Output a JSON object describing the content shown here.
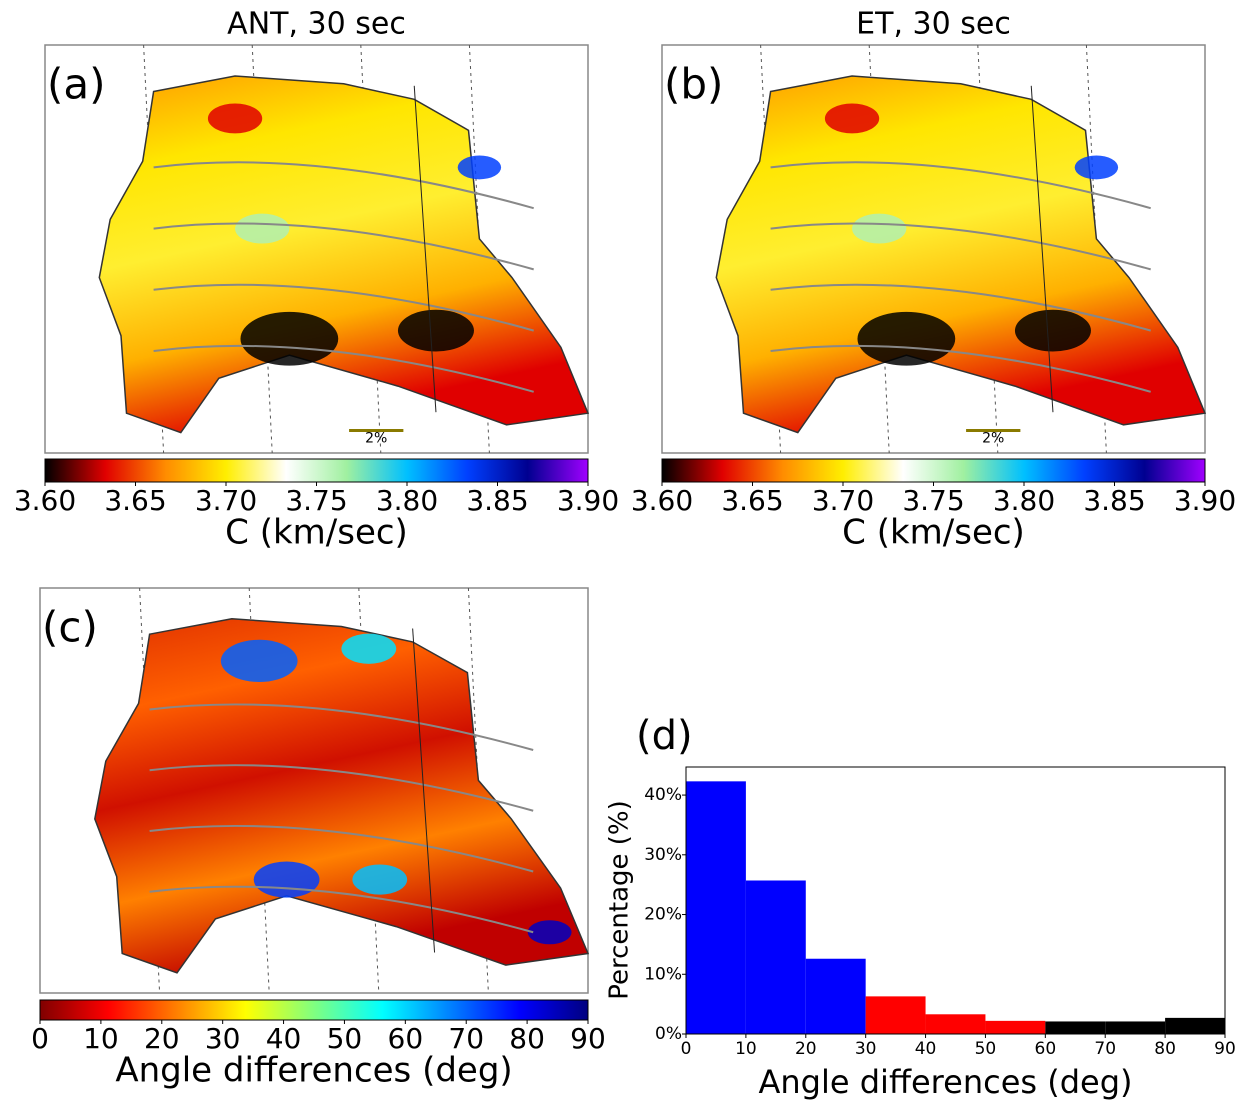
{
  "chart_data": [
    {
      "type": "map",
      "title": "ANT, 30 sec",
      "panel_label": "(a)",
      "scale_label": "2%",
      "colorbar": {
        "xlabel": "C (km/sec)",
        "xlim": [
          3.6,
          3.9
        ],
        "colors": [
          "#000000",
          "#e00000",
          "#ff8c00",
          "#ffee00",
          "#ffffff",
          "#a0f0a0",
          "#00c0ff",
          "#0040ff",
          "#000090",
          "#a000ff"
        ],
        "xticks": [
          {
            "value": 3.6,
            "label": "3.60"
          },
          {
            "value": 3.65,
            "label": "3.65"
          },
          {
            "value": 3.7,
            "label": "3.70"
          },
          {
            "value": 3.75,
            "label": "3.75"
          },
          {
            "value": 3.8,
            "label": "3.80"
          },
          {
            "value": 3.85,
            "label": "3.85"
          },
          {
            "value": 3.9,
            "label": "3.90"
          }
        ]
      }
    },
    {
      "type": "map",
      "title": "ET, 30 sec",
      "panel_label": "(b)",
      "scale_label": "2%",
      "colorbar": {
        "xlabel": "C (km/sec)",
        "xlim": [
          3.6,
          3.9
        ],
        "colors": [
          "#000000",
          "#e00000",
          "#ff8c00",
          "#ffee00",
          "#ffffff",
          "#a0f0a0",
          "#00c0ff",
          "#0040ff",
          "#000090",
          "#a000ff"
        ],
        "xticks": [
          {
            "value": 3.6,
            "label": "3.60"
          },
          {
            "value": 3.65,
            "label": "3.65"
          },
          {
            "value": 3.7,
            "label": "3.70"
          },
          {
            "value": 3.75,
            "label": "3.75"
          },
          {
            "value": 3.8,
            "label": "3.80"
          },
          {
            "value": 3.85,
            "label": "3.85"
          },
          {
            "value": 3.9,
            "label": "3.90"
          }
        ]
      }
    },
    {
      "type": "map",
      "panel_label": "(c)",
      "colorbar": {
        "xlabel": "Angle differences (deg)",
        "xlim": [
          0,
          90
        ],
        "colors": [
          "#800000",
          "#ff0000",
          "#ff8000",
          "#ffff00",
          "#80ff80",
          "#00ffff",
          "#0080ff",
          "#0000ff",
          "#000080"
        ],
        "xticks": [
          0,
          10,
          20,
          30,
          40,
          50,
          60,
          70,
          80,
          90
        ]
      }
    },
    {
      "type": "histogram",
      "panel_label": "(d)",
      "xlabel": "Angle differences (deg)",
      "ylabel": "Percentage (%)",
      "bins": [
        0,
        10,
        20,
        30,
        40,
        50,
        60,
        70,
        80,
        90
      ],
      "values": [
        42.3,
        25.7,
        12.6,
        6.3,
        3.3,
        2.2,
        2.1,
        2.1,
        2.7
      ],
      "colors": [
        "#0000ff",
        "#0000ff",
        "#0000ff",
        "#ff0000",
        "#ff0000",
        "#ff0000",
        "#000000",
        "#000000",
        "#000000"
      ],
      "xlim": [
        0,
        90
      ],
      "ylim": [
        0,
        44.7
      ],
      "xticks": [
        0,
        10,
        20,
        30,
        40,
        50,
        60,
        70,
        80,
        90
      ],
      "yticks": [
        {
          "value": 0,
          "label": "0%"
        },
        {
          "value": 10,
          "label": "10%"
        },
        {
          "value": 20,
          "label": "20%"
        },
        {
          "value": 30,
          "label": "30%"
        },
        {
          "value": 40,
          "label": "40%"
        }
      ]
    }
  ]
}
